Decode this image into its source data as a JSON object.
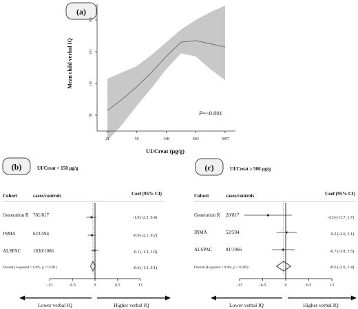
{
  "chart_data": [
    {
      "type": "area",
      "panel_label": "(a)",
      "xlabel": "UI/Creat (μg/g)",
      "ylabel": "Mean child verbal IQ",
      "x_ticks": [
        "21",
        "55",
        "148",
        "403",
        "1097"
      ],
      "y_ticks": [
        "98",
        "100",
        "102",
        "104"
      ],
      "ylim": [
        97,
        105
      ],
      "annotation_italic": "P",
      "annotation_rest": "=<0.001",
      "curve": {
        "x_index": [
          0,
          0.5,
          1,
          1.5,
          2,
          2.5,
          3,
          3.5,
          4
        ],
        "estimate": [
          98.3,
          99.0,
          99.8,
          100.7,
          101.7,
          102.6,
          102.7,
          102.5,
          102.3
        ],
        "lower": [
          96.4,
          97.4,
          98.6,
          99.7,
          100.9,
          101.9,
          101.7,
          100.9,
          100.2
        ],
        "upper": [
          100.3,
          100.7,
          101.1,
          101.8,
          102.6,
          103.4,
          104.0,
          104.5,
          104.9
        ]
      },
      "colors": {
        "band": "#c8c8c8",
        "line": "#707070"
      }
    },
    {
      "type": "forest",
      "panel_label": "(b)",
      "title": "UI/Creat < 150 μg/g",
      "col_cohort": "Cohort",
      "col_cases": "cases/controls",
      "col_coef": "Coef (95% CI)",
      "xlim": [
        -19,
        19
      ],
      "x_ticks": [
        -13,
        -6.5,
        0,
        6.5,
        13
      ],
      "x_tick_labels": [
        "-13",
        "-6.5",
        "0",
        "6.5",
        "13"
      ],
      "studies": [
        {
          "name": "Generation R",
          "cases": "781/817",
          "est": -1.0,
          "lo": -2.5,
          "hi": 0.4,
          "label": "-1.0 (-2.5, 0.4)"
        },
        {
          "name": "INMA",
          "cases": "623/594",
          "est": -0.9,
          "lo": -2.1,
          "hi": 0.2,
          "label": "-0.9 (-2.1, 0.2)"
        },
        {
          "name": "ALSPAC",
          "cases": "1830/1066",
          "est": -0.1,
          "lo": -1.2,
          "hi": 1.0,
          "label": "-0.1 (-1.2, 1.0)"
        }
      ],
      "overall": {
        "text": "Overall  (I-squared = 0.0%, p = 0.501)",
        "est": -0.6,
        "lo": -1.3,
        "hi": 0.1,
        "label": "-0.6 (-1.3, 0.1)"
      },
      "arrow_left": "Lower verbal IQ",
      "arrow_right": "Higher verbal IQ"
    },
    {
      "type": "forest",
      "panel_label": "(c)",
      "title": "UI/Creat ≥ 500 μg/g",
      "col_cohort": "Cohort",
      "col_cases": "cases/controls",
      "col_coef": "Coef (95% CI)",
      "xlim": [
        -19,
        19
      ],
      "x_ticks": [
        -13,
        -6.5,
        0,
        6.5,
        13
      ],
      "x_tick_labels": [
        "-13",
        "-6.5",
        "0",
        "6.5",
        "13"
      ],
      "studies": [
        {
          "name": "Generation R",
          "cases": "20/817",
          "est": -5.0,
          "lo": -11.7,
          "hi": 1.7,
          "label": "-5.0 (-11.7, 1.7)"
        },
        {
          "name": "INMA",
          "cases": "52/594",
          "est": 0.2,
          "lo": -2.6,
          "hi": 3.1,
          "label": "0.2 (-2.6, 3.1)"
        },
        {
          "name": "ALSPAC",
          "cases": "81/1066",
          "est": -0.7,
          "lo": -3.8,
          "hi": 2.5,
          "label": "-0.7 (-3.8, 2.5)"
        }
      ],
      "overall": {
        "text": "Overall  (I-squared = 0.0%, p = 0.369)",
        "est": -0.6,
        "lo": -2.6,
        "hi": 1.4,
        "label": "-0.6 (-2.6, 1.4)"
      },
      "arrow_left": "Lower verbal IQ",
      "arrow_right": "Higher verbal IQ"
    }
  ]
}
